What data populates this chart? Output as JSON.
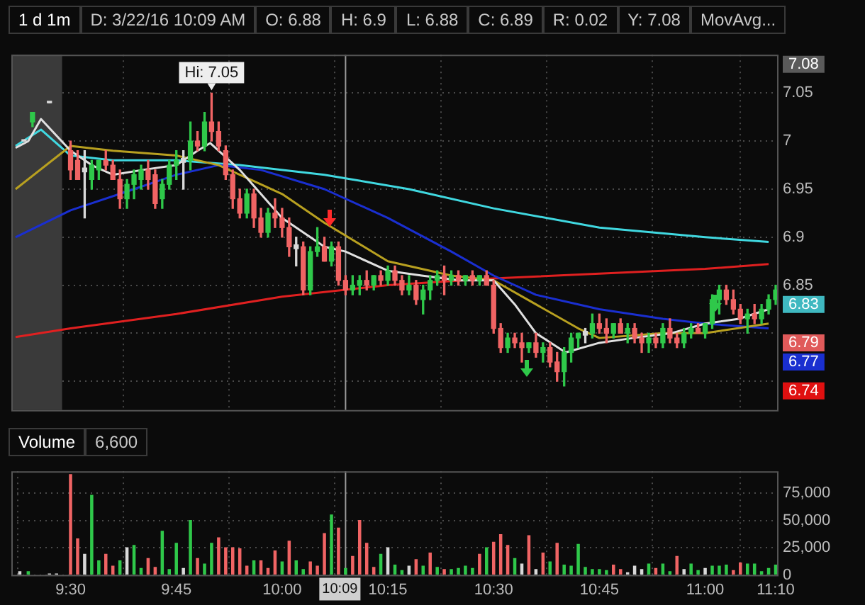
{
  "chart_data": [
    {
      "type": "candlestick",
      "title": "1 d 1m",
      "annotations": [
        "D: 3/22/16 10:09 AM",
        "O: 6.88",
        "H: 6.9",
        "L: 6.88",
        "C: 6.89",
        "R: 0.02",
        "Y: 7.08",
        "MovAvg...",
        {
          "text": "Hi: 7.05",
          "x": 9.8333,
          "y": 7.05
        }
      ],
      "x": [
        9.39,
        9.41,
        9.45,
        9.5,
        9.5167,
        9.5333,
        9.55,
        9.5667,
        9.5833,
        9.6,
        9.6167,
        9.6333,
        9.65,
        9.6667,
        9.6833,
        9.7,
        9.7167,
        9.7333,
        9.75,
        9.7667,
        9.7833,
        9.8,
        9.8167,
        9.8333,
        9.85,
        9.8667,
        9.8833,
        9.9,
        9.9167,
        9.9333,
        9.95,
        9.9667,
        9.9833,
        10,
        10.0167,
        10.0333,
        10.05,
        10.0667,
        10.0833,
        10.1,
        10.1167,
        10.1333,
        10.15,
        10.1667,
        10.1833,
        10.2,
        10.2167,
        10.2333,
        10.25,
        10.2667,
        10.2833,
        10.3,
        10.3167,
        10.3333,
        10.35,
        10.3667,
        10.3833,
        10.4,
        10.4167,
        10.4333,
        10.45,
        10.4667,
        10.4833,
        10.5,
        10.5167,
        10.5333,
        10.55,
        10.5667,
        10.5833,
        10.6,
        10.6167,
        10.6333,
        10.65,
        10.6667,
        10.6833,
        10.7,
        10.7167,
        10.7333,
        10.75,
        10.7667,
        10.7833,
        10.8,
        10.8167,
        10.8333,
        10.85,
        10.8667,
        10.8833,
        10.9,
        10.9167,
        10.9333,
        10.95,
        10.9667,
        10.9833,
        11,
        11.0167,
        11.0333,
        11.05,
        11.0667,
        11.0833,
        11.1,
        11.1167,
        11.1333,
        11.15,
        11.1667
      ],
      "ohlc": [
        [
          7,
          7,
          7,
          7
        ],
        [
          7.02,
          7.03,
          7.015,
          7.03
        ],
        [
          7.04,
          7.04,
          7.04,
          7.04
        ],
        [
          6.99,
          7,
          6.96,
          6.97
        ],
        [
          6.98,
          6.99,
          6.96,
          6.96
        ],
        [
          6.968,
          6.99,
          6.92,
          6.972
        ],
        [
          6.96,
          6.98,
          6.95,
          6.975
        ],
        [
          6.97,
          6.98,
          6.96,
          6.98
        ],
        [
          6.98,
          6.99,
          6.97,
          6.975
        ],
        [
          6.975,
          6.98,
          6.96,
          6.96
        ],
        [
          6.96,
          6.97,
          6.93,
          6.94
        ],
        [
          6.94,
          6.96,
          6.93,
          6.955
        ],
        [
          6.955,
          6.97,
          6.94,
          6.965
        ],
        [
          6.96,
          6.975,
          6.95,
          6.97
        ],
        [
          6.97,
          6.98,
          6.95,
          6.96
        ],
        [
          6.965,
          6.97,
          6.93,
          6.935
        ],
        [
          6.94,
          6.96,
          6.93,
          6.955
        ],
        [
          6.955,
          6.98,
          6.95,
          6.975
        ],
        [
          6.975,
          6.99,
          6.96,
          6.98
        ],
        [
          6.978,
          6.99,
          6.95,
          6.982
        ],
        [
          6.98,
          7.02,
          6.97,
          7
        ],
        [
          7,
          7.01,
          6.99,
          6.995
        ],
        [
          6.995,
          7.03,
          6.99,
          7.02
        ],
        [
          7.02,
          7.05,
          7,
          7.01
        ],
        [
          7.01,
          7.02,
          6.99,
          6.995
        ],
        [
          6.99,
          6.995,
          6.96,
          6.965
        ],
        [
          6.965,
          6.97,
          6.93,
          6.94
        ],
        [
          6.94,
          6.95,
          6.92,
          6.925
        ],
        [
          6.925,
          6.95,
          6.92,
          6.945
        ],
        [
          6.945,
          6.95,
          6.91,
          6.92
        ],
        [
          6.92,
          6.93,
          6.9,
          6.905
        ],
        [
          6.905,
          6.93,
          6.9,
          6.925
        ],
        [
          6.925,
          6.94,
          6.91,
          6.92
        ],
        [
          6.92,
          6.93,
          6.9,
          6.91
        ],
        [
          6.91,
          6.92,
          6.88,
          6.89
        ],
        [
          6.888,
          6.9,
          6.87,
          6.892
        ],
        [
          6.89,
          6.895,
          6.84,
          6.845
        ],
        [
          6.845,
          6.89,
          6.84,
          6.885
        ],
        [
          6.885,
          6.91,
          6.88,
          6.89
        ],
        [
          6.89,
          6.9,
          6.875,
          6.875
        ],
        [
          6.875,
          6.895,
          6.87,
          6.89
        ],
        [
          6.89,
          6.895,
          6.85,
          6.855
        ],
        [
          6.855,
          6.86,
          6.84,
          6.845
        ],
        [
          6.845,
          6.86,
          6.84,
          6.85
        ],
        [
          6.85,
          6.86,
          6.84,
          6.855
        ],
        [
          6.855,
          6.865,
          6.845,
          6.85
        ],
        [
          6.85,
          6.86,
          6.845,
          6.86
        ],
        [
          6.86,
          6.865,
          6.85,
          6.855
        ],
        [
          6.855,
          6.87,
          6.85,
          6.865
        ],
        [
          6.865,
          6.87,
          6.85,
          6.855
        ],
        [
          6.855,
          6.86,
          6.84,
          6.845
        ],
        [
          6.845,
          6.86,
          6.84,
          6.85
        ],
        [
          6.85,
          6.855,
          6.83,
          6.835
        ],
        [
          6.835,
          6.85,
          6.82,
          6.845
        ],
        [
          6.845,
          6.86,
          6.835,
          6.855
        ],
        [
          6.855,
          6.865,
          6.85,
          6.86
        ],
        [
          6.86,
          6.87,
          6.84,
          6.855
        ],
        [
          6.855,
          6.865,
          6.85,
          6.86
        ],
        [
          6.86,
          6.865,
          6.85,
          6.855
        ],
        [
          6.855,
          6.86,
          6.85,
          6.86
        ],
        [
          6.86,
          6.865,
          6.85,
          6.855
        ],
        [
          6.855,
          6.86,
          6.85,
          6.86
        ],
        [
          6.86,
          6.865,
          6.85,
          6.85
        ],
        [
          6.85,
          6.855,
          6.8,
          6.805
        ],
        [
          6.805,
          6.81,
          6.78,
          6.785
        ],
        [
          6.785,
          6.8,
          6.78,
          6.795
        ],
        [
          6.795,
          6.8,
          6.785,
          6.79
        ],
        [
          6.79,
          6.8,
          6.77,
          6.785
        ],
        [
          6.785,
          6.79,
          6.78,
          6.79
        ],
        [
          6.79,
          6.8,
          6.775,
          6.78
        ],
        [
          6.78,
          6.79,
          6.77,
          6.785
        ],
        [
          6.785,
          6.79,
          6.765,
          6.77
        ],
        [
          6.77,
          6.78,
          6.75,
          6.76
        ],
        [
          6.76,
          6.785,
          6.745,
          6.78
        ],
        [
          6.78,
          6.8,
          6.77,
          6.795
        ],
        [
          6.795,
          6.8,
          6.785,
          6.8
        ],
        [
          6.798,
          6.805,
          6.79,
          6.802
        ],
        [
          6.8,
          6.82,
          6.795,
          6.81
        ],
        [
          6.81,
          6.82,
          6.8,
          6.805
        ],
        [
          6.805,
          6.815,
          6.79,
          6.8
        ],
        [
          6.8,
          6.81,
          6.795,
          6.81
        ],
        [
          6.81,
          6.815,
          6.8,
          6.8
        ],
        [
          6.8,
          6.81,
          6.79,
          6.805
        ],
        [
          6.805,
          6.81,
          6.79,
          6.795
        ],
        [
          6.795,
          6.8,
          6.78,
          6.79
        ],
        [
          6.79,
          6.8,
          6.78,
          6.795
        ],
        [
          6.795,
          6.8,
          6.785,
          6.79
        ],
        [
          6.79,
          6.81,
          6.785,
          6.805
        ],
        [
          6.805,
          6.815,
          6.79,
          6.795
        ],
        [
          6.795,
          6.8,
          6.785,
          6.79
        ],
        [
          6.79,
          6.805,
          6.785,
          6.8
        ],
        [
          6.8,
          6.81,
          6.795,
          6.805
        ],
        [
          6.805,
          6.81,
          6.8,
          6.8
        ],
        [
          6.8,
          6.81,
          6.795,
          6.81
        ],
        [
          6.81,
          6.84,
          6.805,
          6.835
        ],
        [
          6.835,
          6.85,
          6.82,
          6.845
        ],
        [
          6.845,
          6.85,
          6.83,
          6.835
        ],
        [
          6.835,
          6.845,
          6.82,
          6.825
        ],
        [
          6.825,
          6.83,
          6.81,
          6.815
        ],
        [
          6.815,
          6.825,
          6.8,
          6.82
        ],
        [
          6.82,
          6.83,
          6.81,
          6.815
        ],
        [
          6.815,
          6.83,
          6.81,
          6.825
        ],
        [
          6.825,
          6.84,
          6.82,
          6.835
        ],
        [
          6.835,
          6.85,
          6.83,
          6.845
        ]
      ],
      "colors": [
        "#d8d8d8",
        "#2fc84a",
        "#d8d8d8",
        "#f06464",
        "#f06464",
        "#d8d8d8",
        "#2fc84a",
        "#2fc84a",
        "#f06464",
        "#f06464",
        "#f06464",
        "#2fc84a",
        "#2fc84a",
        "#2fc84a",
        "#f06464",
        "#f06464",
        "#2fc84a",
        "#2fc84a",
        "#2fc84a",
        "#d8d8d8",
        "#2fc84a",
        "#f06464",
        "#2fc84a",
        "#f06464",
        "#f06464",
        "#f06464",
        "#f06464",
        "#f06464",
        "#2fc84a",
        "#f06464",
        "#f06464",
        "#2fc84a",
        "#f06464",
        "#f06464",
        "#f06464",
        "#d8d8d8",
        "#f06464",
        "#2fc84a",
        "#2fc84a",
        "#f06464",
        "#2fc84a",
        "#f06464",
        "#f06464",
        "#2fc84a",
        "#2fc84a",
        "#f06464",
        "#2fc84a",
        "#f06464",
        "#2fc84a",
        "#f06464",
        "#f06464",
        "#2fc84a",
        "#f06464",
        "#2fc84a",
        "#2fc84a",
        "#2fc84a",
        "#f06464",
        "#2fc84a",
        "#f06464",
        "#2fc84a",
        "#f06464",
        "#2fc84a",
        "#f06464",
        "#f06464",
        "#f06464",
        "#2fc84a",
        "#f06464",
        "#f06464",
        "#2fc84a",
        "#f06464",
        "#2fc84a",
        "#f06464",
        "#f06464",
        "#2fc84a",
        "#2fc84a",
        "#2fc84a",
        "#d8d8d8",
        "#2fc84a",
        "#f06464",
        "#f06464",
        "#2fc84a",
        "#f06464",
        "#2fc84a",
        "#f06464",
        "#f06464",
        "#2fc84a",
        "#f06464",
        "#2fc84a",
        "#f06464",
        "#f06464",
        "#2fc84a",
        "#2fc84a",
        "#f06464",
        "#2fc84a",
        "#2fc84a",
        "#2fc84a",
        "#f06464",
        "#f06464",
        "#f06464",
        "#2fc84a",
        "#f06464",
        "#2fc84a",
        "#2fc84a",
        "#2fc84a"
      ],
      "series": [
        {
          "type": "line",
          "color": "#e0e0e0",
          "x": [
            9.37,
            9.4,
            9.43,
            9.5,
            9.55,
            9.6,
            9.67,
            9.75,
            9.8,
            9.83,
            9.9,
            10,
            10.1,
            10.15,
            10.25,
            10.33,
            10.42,
            10.5,
            10.55,
            10.6,
            10.67,
            10.75,
            10.83,
            10.92,
            11,
            11.08,
            11.15
          ],
          "values": [
            6.993,
            7,
            7.023,
            6.99,
            6.975,
            6.965,
            6.97,
            6.975,
            6.99,
            6.998,
            6.97,
            6.92,
            6.89,
            6.885,
            6.865,
            6.86,
            6.855,
            6.855,
            6.83,
            6.8,
            6.78,
            6.79,
            6.795,
            6.8,
            6.81,
            6.815,
            6.825
          ]
        },
        {
          "type": "line",
          "color": "#b8a020",
          "x": [
            9.37,
            9.5,
            9.6,
            9.75,
            9.85,
            10,
            10.1,
            10.25,
            10.4,
            10.5,
            10.6,
            10.7,
            10.75,
            10.9,
            11,
            11.15
          ],
          "values": [
            6.95,
            6.995,
            6.99,
            6.985,
            6.975,
            6.945,
            6.915,
            6.875,
            6.86,
            6.855,
            6.83,
            6.805,
            6.795,
            6.8,
            6.8,
            6.81
          ]
        },
        {
          "type": "line",
          "color": "#1a2fd0",
          "x": [
            9.37,
            9.5,
            9.65,
            9.75,
            9.85,
            9.95,
            10.1,
            10.25,
            10.4,
            10.5,
            10.6,
            10.75,
            10.9,
            11,
            11.15
          ],
          "values": [
            6.9,
            6.928,
            6.95,
            6.965,
            6.975,
            6.97,
            6.95,
            6.92,
            6.885,
            6.86,
            6.84,
            6.825,
            6.815,
            6.81,
            6.805
          ]
        },
        {
          "type": "line",
          "color": "#40d8e0",
          "x": [
            9.37,
            9.43,
            9.5,
            9.6,
            9.75,
            9.9,
            10.1,
            10.3,
            10.5,
            10.75,
            11,
            11.15
          ],
          "values": [
            6.995,
            7.012,
            6.985,
            6.98,
            6.98,
            6.975,
            6.965,
            6.95,
            6.93,
            6.91,
            6.9,
            6.895
          ]
        },
        {
          "type": "line",
          "color": "#e02020",
          "x": [
            9.37,
            9.5,
            9.75,
            10,
            10.25,
            10.5,
            10.75,
            11,
            11.15
          ],
          "values": [
            6.796,
            6.805,
            6.82,
            6.838,
            6.85,
            6.857,
            6.862,
            6.867,
            6.872
          ]
        }
      ],
      "xlim": [
        9.36,
        11.17
      ],
      "xticks": [
        {
          "value": 9.5,
          "label": null
        },
        {
          "value": 9.75,
          "label": null
        },
        {
          "value": 10,
          "label": null
        },
        {
          "value": 10.25,
          "label": null
        },
        {
          "value": 10.5,
          "label": null
        },
        {
          "value": 10.75,
          "label": null
        },
        {
          "value": 11,
          "label": null
        },
        {
          "value": 11.1667,
          "label": null
        }
      ],
      "ylim": [
        6.72,
        7.09
      ],
      "yticks": [
        {
          "value": 6.75,
          "label": null
        },
        {
          "value": 6.8,
          "label": null
        },
        6.85,
        6.9,
        6.95,
        7,
        7.05
      ],
      "grid": true,
      "tick_labels": "y",
      "bands": [
        {
          "axis": "x",
          "from": 9.36,
          "to": 9.48,
          "color": "#3a3a3a"
        }
      ],
      "y2lim": [
        6.72,
        7.09
      ],
      "y2ticks": [
        7.08,
        6.83,
        6.79,
        6.77,
        6.74
      ],
      "ref_lines": [
        {
          "axis": "x",
          "value": 10.15,
          "color": "#9a9a9a"
        }
      ]
    },
    {
      "type": "bar",
      "annotations": [
        "Volume",
        "6,600"
      ],
      "x": [
        9.38,
        9.4,
        9.45,
        9.4667,
        9.5,
        9.5167,
        9.5333,
        9.55,
        9.5667,
        9.5833,
        9.6,
        9.6167,
        9.6333,
        9.65,
        9.6667,
        9.6833,
        9.7,
        9.7167,
        9.7333,
        9.75,
        9.7667,
        9.7833,
        9.8,
        9.8167,
        9.8333,
        9.85,
        9.8667,
        9.8833,
        9.9,
        9.9167,
        9.9333,
        9.95,
        9.9667,
        9.9833,
        10,
        10.0167,
        10.0333,
        10.05,
        10.0667,
        10.0833,
        10.1,
        10.1167,
        10.1333,
        10.15,
        10.1667,
        10.1833,
        10.2,
        10.2167,
        10.2333,
        10.25,
        10.2667,
        10.2833,
        10.3,
        10.3167,
        10.3333,
        10.35,
        10.3667,
        10.3833,
        10.4,
        10.4167,
        10.4333,
        10.45,
        10.4667,
        10.4833,
        10.5,
        10.5167,
        10.5333,
        10.55,
        10.5667,
        10.5833,
        10.6,
        10.6167,
        10.6333,
        10.65,
        10.6667,
        10.6833,
        10.7,
        10.7167,
        10.7333,
        10.75,
        10.7667,
        10.7833,
        10.8,
        10.8167,
        10.8333,
        10.85,
        10.8667,
        10.8833,
        10.9,
        10.9167,
        10.9333,
        10.95,
        10.9667,
        10.9833,
        11,
        11.0167,
        11.0333,
        11.05,
        11.0667,
        11.0833,
        11.1,
        11.1167,
        11.1333,
        11.15,
        11.1667
      ],
      "values": [
        3000,
        3000,
        1000,
        1000,
        92000,
        33000,
        19000,
        73000,
        13000,
        19000,
        8000,
        13000,
        25000,
        27000,
        6000,
        15000,
        7000,
        40000,
        5000,
        29000,
        6000,
        50000,
        15000,
        10000,
        29000,
        34000,
        25000,
        25000,
        24000,
        8000,
        13000,
        13000,
        6000,
        22000,
        12000,
        31000,
        13000,
        5000,
        12000,
        8000,
        38000,
        55000,
        43000,
        6000,
        17000,
        50000,
        29000,
        7000,
        19000,
        25000,
        9000,
        4000,
        8000,
        14000,
        8000,
        20000,
        7000,
        5000,
        5000,
        6000,
        8000,
        6000,
        19000,
        25000,
        30000,
        37000,
        27000,
        15000,
        10000,
        36000,
        5000,
        20000,
        12000,
        29000,
        9000,
        8000,
        28000,
        7000,
        5000,
        5000,
        4000,
        9000,
        5000,
        2000,
        8000,
        5000,
        10000,
        6000,
        10000,
        3000,
        17000,
        5000,
        10000,
        4000,
        6000,
        8000,
        8000,
        9000,
        4000,
        11000,
        10000,
        10000,
        3000,
        6000,
        9000
      ],
      "colors": [
        "#d8d8d8",
        "#2fc84a",
        "#d8d8d8",
        "#d8d8d8",
        "#f06464",
        "#f06464",
        "#d8d8d8",
        "#2fc84a",
        "#2fc84a",
        "#f06464",
        "#f06464",
        "#2fc84a",
        "#d8d8d8",
        "#2fc84a",
        "#2fc84a",
        "#f06464",
        "#f06464",
        "#2fc84a",
        "#2fc84a",
        "#2fc84a",
        "#d8d8d8",
        "#2fc84a",
        "#f06464",
        "#2fc84a",
        "#2fc84a",
        "#f06464",
        "#f06464",
        "#f06464",
        "#f06464",
        "#f06464",
        "#2fc84a",
        "#f06464",
        "#f06464",
        "#f06464",
        "#2fc84a",
        "#f06464",
        "#2fc84a",
        "#2fc84a",
        "#f06464",
        "#f06464",
        "#f06464",
        "#2fc84a",
        "#f06464",
        "#2fc84a",
        "#f06464",
        "#f06464",
        "#f06464",
        "#f06464",
        "#2fc84a",
        "#d8d8d8",
        "#2fc84a",
        "#2fc84a",
        "#d8d8d8",
        "#f06464",
        "#2fc84a",
        "#f06464",
        "#2fc84a",
        "#f06464",
        "#2fc84a",
        "#2fc84a",
        "#2fc84a",
        "#2fc84a",
        "#f06464",
        "#2fc84a",
        "#f06464",
        "#f06464",
        "#f06464",
        "#2fc84a",
        "#d8d8d8",
        "#f06464",
        "#d8d8d8",
        "#f06464",
        "#2fc84a",
        "#f06464",
        "#2fc84a",
        "#2fc84a",
        "#2fc84a",
        "#2fc84a",
        "#2fc84a",
        "#2fc84a",
        "#2fc84a",
        "#f06464",
        "#f06464",
        "#d8d8d8",
        "#d8d8d8",
        "#d8d8d8",
        "#2fc84a",
        "#f06464",
        "#2fc84a",
        "#2fc84a",
        "#f06464",
        "#d8d8d8",
        "#2fc84a",
        "#2fc84a",
        "#d8d8d8",
        "#2fc84a",
        "#2fc84a",
        "#2fc84a",
        "#f06464",
        "#f06464",
        "#2fc84a",
        "#2fc84a",
        "#2fc84a",
        "#2fc84a",
        "#2fc84a"
      ],
      "xlim": [
        9.36,
        11.17
      ],
      "xticks": [
        {
          "value": 9.5,
          "label": "9:30"
        },
        {
          "value": 9.75,
          "label": "9:45"
        },
        {
          "value": 10,
          "label": "10:00"
        },
        {
          "value": 10.25,
          "label": "10:15"
        },
        {
          "value": 10.5,
          "label": "10:30"
        },
        {
          "value": 10.75,
          "label": "10:45"
        },
        {
          "value": 11,
          "label": "11:00"
        },
        {
          "value": 11.1667,
          "label": "11:10"
        }
      ],
      "ylim": [
        0,
        95000
      ],
      "yticks": [
        0,
        {
          "value": 25000,
          "label": "25,000"
        },
        {
          "value": 50000,
          "label": "50,000"
        },
        {
          "value": 75000,
          "label": "75,000"
        }
      ],
      "grid": true,
      "ref_lines": [
        {
          "axis": "x",
          "value": 10.15,
          "label": "10:09",
          "color": "#9a9a9a"
        }
      ]
    }
  ]
}
